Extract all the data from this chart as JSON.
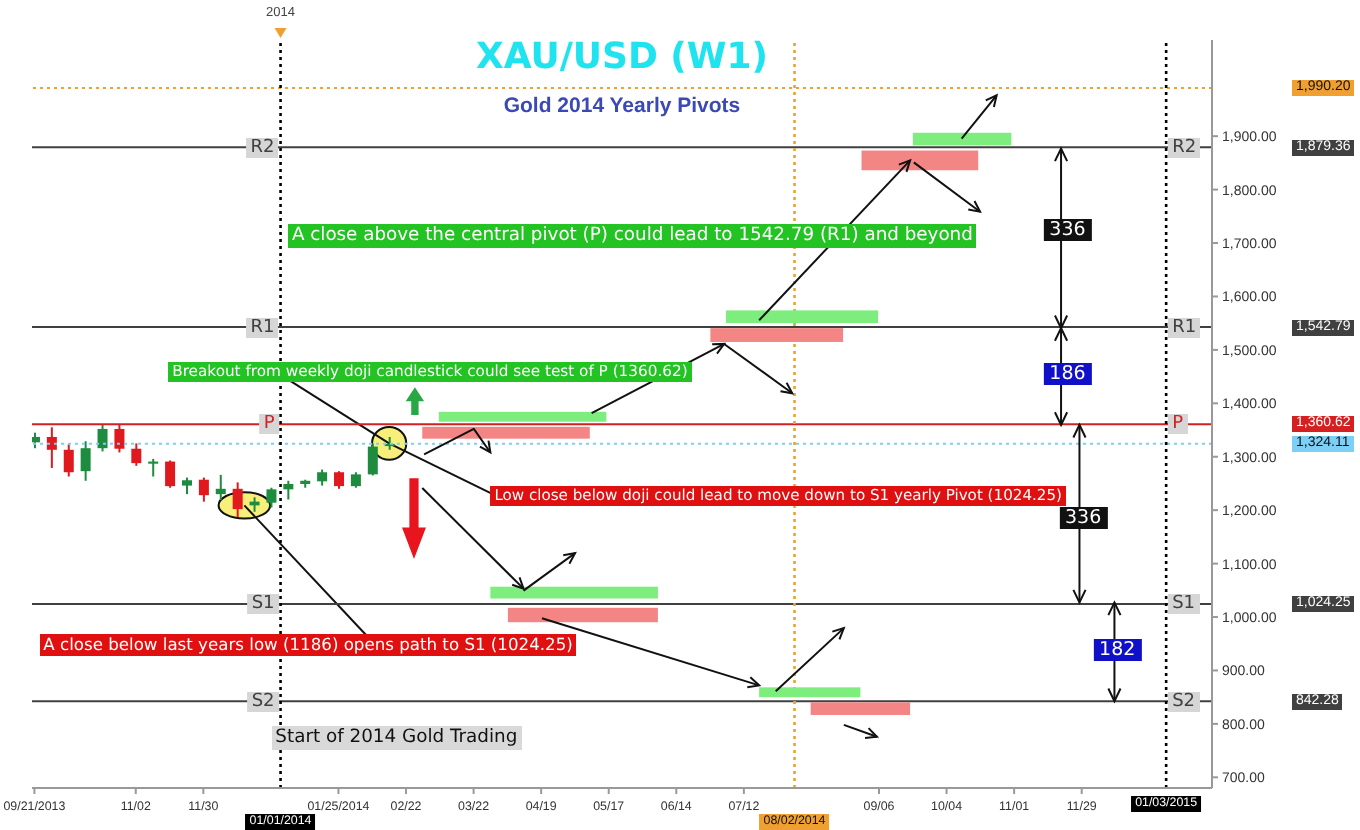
{
  "chart_data": {
    "type": "candlestick",
    "title": "XAU/USD (W1)",
    "subtitle": "Gold 2014 Yearly Pivots",
    "x": [
      "2013-09-21",
      "2013-09-28",
      "2013-10-05",
      "2013-10-12",
      "2013-10-19",
      "2013-10-26",
      "2013-11-02",
      "2013-11-09",
      "2013-11-16",
      "2013-11-23",
      "2013-11-30",
      "2013-12-07",
      "2013-12-14",
      "2013-12-21",
      "2013-12-28",
      "2014-01-04",
      "2014-01-11",
      "2014-01-18",
      "2014-01-25",
      "2014-02-01",
      "2014-02-08",
      "2014-02-15"
    ],
    "ohlc": [
      [
        1327,
        1345,
        1316,
        1337
      ],
      [
        1337,
        1355,
        1279,
        1313
      ],
      [
        1313,
        1323,
        1263,
        1271
      ],
      [
        1273,
        1329,
        1255,
        1316
      ],
      [
        1316,
        1360,
        1310,
        1352
      ],
      [
        1352,
        1360,
        1308,
        1315
      ],
      [
        1315,
        1325,
        1283,
        1288
      ],
      [
        1287,
        1296,
        1263,
        1291
      ],
      [
        1291,
        1293,
        1242,
        1245
      ],
      [
        1246,
        1261,
        1230,
        1256
      ],
      [
        1257,
        1261,
        1216,
        1228
      ],
      [
        1230,
        1266,
        1219,
        1240
      ],
      [
        1240,
        1252,
        1187,
        1202
      ],
      [
        1209,
        1224,
        1197,
        1216
      ],
      [
        1214,
        1242,
        1205,
        1239
      ],
      [
        1239,
        1255,
        1220,
        1249
      ],
      [
        1249,
        1257,
        1242,
        1255
      ],
      [
        1254,
        1276,
        1246,
        1271
      ],
      [
        1271,
        1273,
        1240,
        1245
      ],
      [
        1245,
        1271,
        1242,
        1267
      ],
      [
        1267,
        1325,
        1265,
        1319
      ],
      [
        1320,
        1337,
        1313,
        1324
      ]
    ],
    "colors": [
      "#1e8c3e",
      "#e0191f",
      "#e0191f",
      "#1e8c3e",
      "#1e8c3e",
      "#e0191f",
      "#e0191f",
      "#1e8c3e",
      "#e0191f",
      "#1e8c3e",
      "#e0191f",
      "#1e8c3e",
      "#e0191f",
      "#1e8c3e",
      "#1e8c3e",
      "#1e8c3e",
      "#1e8c3e",
      "#1e8c3e",
      "#e0191f",
      "#1e8c3e",
      "#1e8c3e",
      "#1e8c3e"
    ],
    "xlim": [
      "2013-09-20",
      "2015-01-22"
    ],
    "xticks": [
      {
        "value": "2013-09-21",
        "label": "09/21/2013"
      },
      {
        "value": "2013-11-02",
        "label": "11/02"
      },
      {
        "value": "2013-11-30",
        "label": "11/30"
      },
      {
        "value": "2014-01-25",
        "label": "01/25/2014"
      },
      {
        "value": "2014-02-22",
        "label": "02/22"
      },
      {
        "value": "2014-03-22",
        "label": "03/22"
      },
      {
        "value": "2014-04-19",
        "label": "04/19"
      },
      {
        "value": "2014-05-17",
        "label": "05/17"
      },
      {
        "value": "2014-06-14",
        "label": "06/14"
      },
      {
        "value": "2014-07-12",
        "label": "07/12"
      },
      {
        "value": "2014-09-06",
        "label": "09/06"
      },
      {
        "value": "2014-10-04",
        "label": "10/04"
      },
      {
        "value": "2014-11-01",
        "label": "11/01"
      },
      {
        "value": "2014-11-29",
        "label": "11/29"
      }
    ],
    "ylim": [
      680,
      2080
    ],
    "yticks": [
      {
        "value": 700,
        "label": "700.00"
      },
      {
        "value": 800,
        "label": "800.00"
      },
      {
        "value": 900,
        "label": "900.00"
      },
      {
        "value": 1000,
        "label": "1,000.00"
      },
      {
        "value": 1100,
        "label": "1,100.00"
      },
      {
        "value": 1200,
        "label": "1,200.00"
      },
      {
        "value": 1300,
        "label": "1,300.00"
      },
      {
        "value": 1400,
        "label": "1,400.00"
      },
      {
        "value": 1500,
        "label": "1,500.00"
      },
      {
        "value": 1600,
        "label": "1,600.00"
      },
      {
        "value": 1700,
        "label": "1,700.00"
      },
      {
        "value": 1800,
        "label": "1,800.00"
      },
      {
        "value": 1900,
        "label": "1,900.00"
      }
    ],
    "ref_lines": [
      {
        "axis": "y",
        "value": 1990.2,
        "color": "#f0a030",
        "line_style": "dotted"
      },
      {
        "axis": "y",
        "value": 1879.36,
        "label": "R2",
        "color": "#404040"
      },
      {
        "axis": "y",
        "value": 1542.79,
        "label": "R1",
        "color": "#404040"
      },
      {
        "axis": "y",
        "value": 1360.62,
        "label": "P",
        "color": "#d42020"
      },
      {
        "axis": "y",
        "value": 1324.11,
        "color": "#7ccff5",
        "line_style": "dotted"
      },
      {
        "axis": "y",
        "value": 1024.25,
        "label": "S1",
        "color": "#404040"
      },
      {
        "axis": "y",
        "value": 842.28,
        "label": "S2",
        "color": "#404040"
      },
      {
        "axis": "x",
        "value": "2014-01-01",
        "label": "2014",
        "color": "#000000",
        "line_style": "dotted"
      },
      {
        "axis": "x",
        "value": "2014-08-02",
        "color": "#f0a030",
        "line_style": "dotted"
      },
      {
        "axis": "x",
        "value": "2015-01-03",
        "color": "#000000",
        "line_style": "dotted"
      }
    ],
    "annotations": [
      "A close above the central pivot (P) could lead to 1542.79 (R1) and beyond",
      {
        "text": "Breakout from weekly doji candlestick could see test of P (1360.62)",
        "x": "2014-02-15",
        "y": 1325
      },
      {
        "text": "Low close below doji could lead to move down to S1 yearly Pivot (1024.25)",
        "x": "2014-02-15",
        "y": 1325
      },
      {
        "text": "A close below last years low (1186) opens path to S1 (1024.25)",
        "x": "2013-12-17",
        "y": 1209
      },
      "Start of 2014 Gold Trading",
      "336",
      "186",
      "336",
      "182",
      "1,990.20",
      "1,879.36",
      "1,542.79",
      "1,360.62",
      "1,324.11",
      "1,024.25",
      "842.28",
      "01/01/2014",
      "08/02/2014",
      "01/03/2015"
    ]
  }
}
